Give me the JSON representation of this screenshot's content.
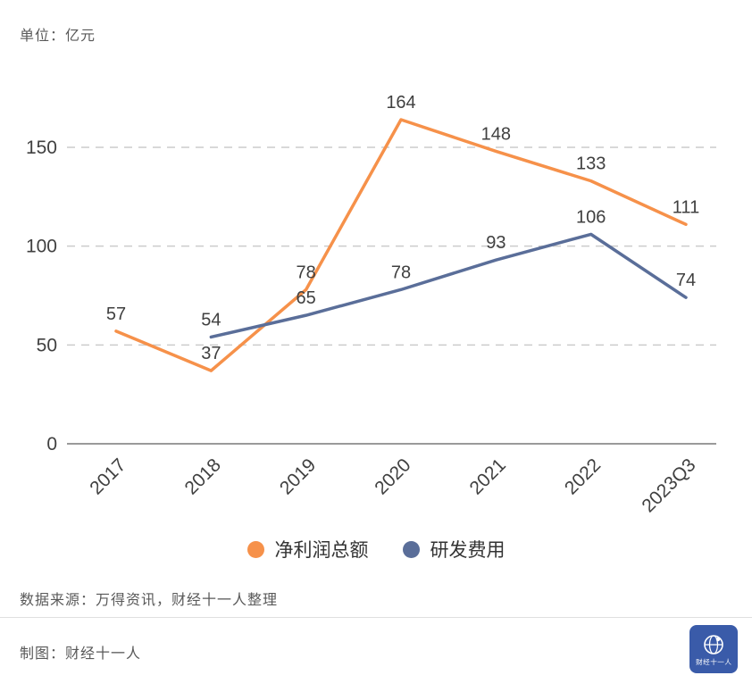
{
  "unit_label": "单位：亿元",
  "chart_data": {
    "type": "line",
    "categories": [
      "2017",
      "2018",
      "2019",
      "2020",
      "2021",
      "2022",
      "2023Q3"
    ],
    "series": [
      {
        "name": "净利润总额",
        "color": "#f6914a",
        "values": [
          57,
          37,
          78,
          164,
          148,
          133,
          111
        ]
      },
      {
        "name": "研发费用",
        "color": "#5a6e99",
        "values": [
          null,
          54,
          65,
          78,
          93,
          106,
          74
        ]
      }
    ],
    "yticks": [
      0,
      50,
      100,
      150
    ],
    "ylim": [
      0,
      175
    ],
    "grid": "horizontal-dashed",
    "legend_position": "bottom",
    "title": "",
    "xlabel": "",
    "ylabel": ""
  },
  "legend": {
    "items": [
      {
        "label": "净利润总额",
        "color": "#f6914a"
      },
      {
        "label": "研发费用",
        "color": "#5a6e99"
      }
    ]
  },
  "footer": {
    "source": "数据来源：万得资讯，财经十一人整理",
    "credit": "制图：财经十一人",
    "logo_text": "财经十一人"
  }
}
